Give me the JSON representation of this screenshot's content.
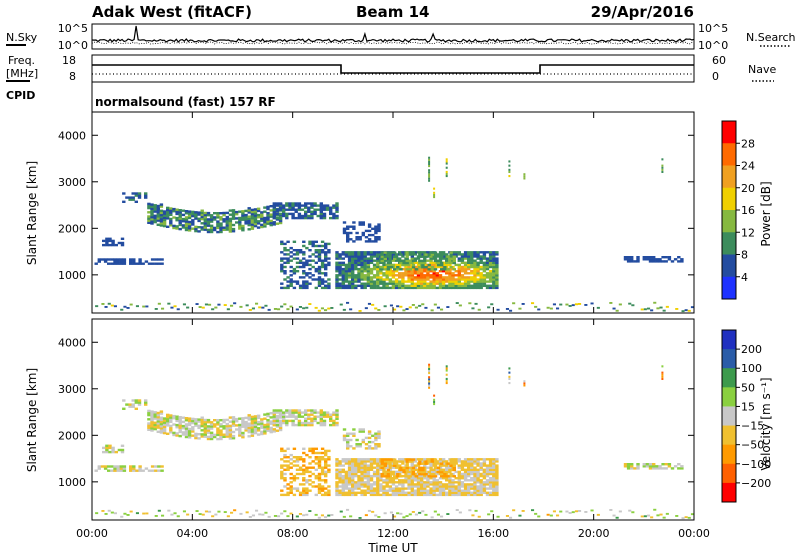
{
  "header": {
    "station": "Adak West (fitACF)",
    "beam": "Beam 14",
    "date": "29/Apr/2016"
  },
  "noise_panel": {
    "left_label": "N.Sky",
    "right_label": "N.Search",
    "left_ticks": [
      "10^5",
      "10^0"
    ],
    "right_ticks": [
      "10^5",
      "10^0"
    ]
  },
  "freq_panel": {
    "left_label_1": "Freq.",
    "left_label_2": "[MHz]",
    "right_label": "Nave",
    "left_ticks": [
      "18",
      "8"
    ],
    "right_ticks": [
      "60",
      "0"
    ],
    "cpid_label": "CPID",
    "cpid_text": "normalsound (fast) 157 RF"
  },
  "x_axis": {
    "label": "Time UT",
    "ticks": [
      "00:00",
      "04:00",
      "08:00",
      "12:00",
      "16:00",
      "20:00",
      "00:00"
    ]
  },
  "chart_data": [
    {
      "type": "heatmap",
      "name": "power",
      "ylabel": "Slant Range [km]",
      "y_ticks": [
        "1000",
        "2000",
        "3000",
        "4000"
      ],
      "ylim": [
        180,
        4500
      ],
      "xlim_hours": [
        0,
        24
      ],
      "colorbar_label": "Power [dB]",
      "colorbar_ticks": [
        "28",
        "24",
        "20",
        "16",
        "12",
        "8",
        "4"
      ],
      "colorbar_colors": [
        "#ff0000",
        "#ff6a00",
        "#f0a020",
        "#f0d000",
        "#86b840",
        "#3c8c5c",
        "#234ca0",
        "#1e32ff"
      ]
    },
    {
      "type": "heatmap",
      "name": "velocity",
      "ylabel": "Slant Range [km]",
      "y_ticks": [
        "1000",
        "2000",
        "3000",
        "4000"
      ],
      "ylim": [
        180,
        4500
      ],
      "xlim_hours": [
        0,
        24
      ],
      "colorbar_label": "Velocity [m s⁻¹]",
      "colorbar_ticks": [
        "200",
        "100",
        "50",
        "15",
        "−15",
        "−50",
        "−100",
        "−200"
      ],
      "colorbar_colors": [
        "#2030c0",
        "#2a5ca8",
        "#3c9a4c",
        "#8ad040",
        "#c8c8c8",
        "#f0c030",
        "#ff9a00",
        "#ff6000",
        "#ff0000"
      ]
    }
  ]
}
